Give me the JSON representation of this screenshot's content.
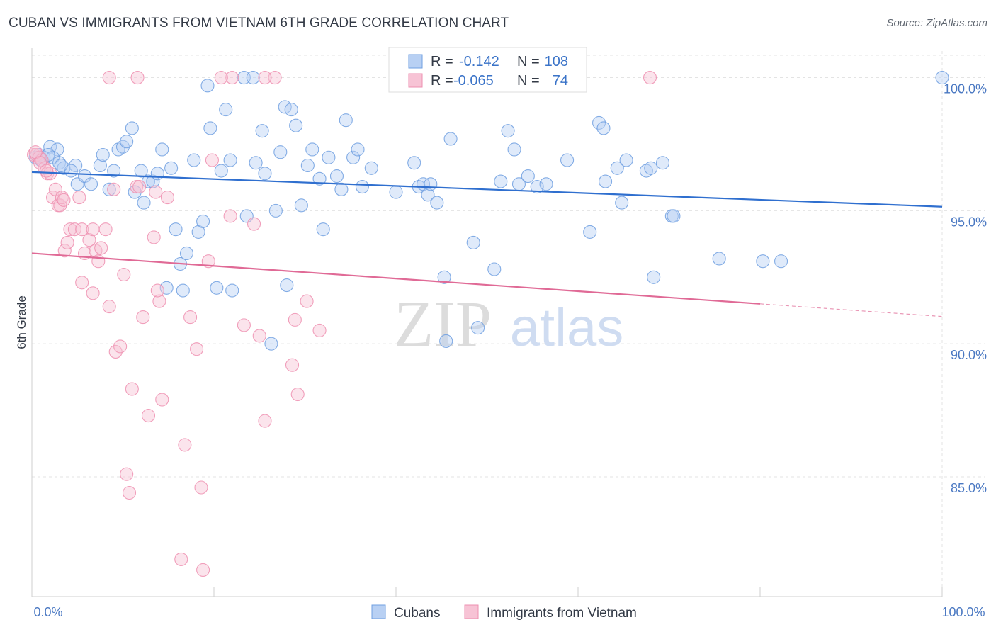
{
  "title": "CUBAN VS IMMIGRANTS FROM VIETNAM 6TH GRADE CORRELATION CHART",
  "source": "Source: ZipAtlas.com",
  "watermark": {
    "zip": "ZIP",
    "atlas": "atlas"
  },
  "legend_top": [
    {
      "r_label": "R =",
      "r_value": "-0.142",
      "n_label": "N =",
      "n_value": "108",
      "color": "#6f9fe0",
      "fill": "#b8d0f3"
    },
    {
      "r_label": "R =",
      "r_value": "-0.065",
      "n_label": "N =",
      "n_value": "74",
      "color": "#ee8fb0",
      "fill": "#f7c3d5"
    }
  ],
  "chart_data": {
    "type": "scatter",
    "title": "CUBAN VS IMMIGRANTS FROM VIETNAM 6TH GRADE CORRELATION CHART",
    "xlabel": "",
    "ylabel": "6th Grade",
    "xlim": [
      0,
      100
    ],
    "ylim": [
      80.5,
      101
    ],
    "x_tick_labels": [
      "0.0%",
      "100.0%"
    ],
    "y_ticks": [
      85,
      90,
      95,
      100
    ],
    "y_tick_labels": [
      "85.0%",
      "90.0%",
      "95.0%",
      "100.0%"
    ],
    "grid": true,
    "legend_position": "top-center",
    "series": [
      {
        "name": "Cubans",
        "color": "#6f9fe0",
        "fill": "#b8d0f3",
        "trend": {
          "x": [
            0,
            100
          ],
          "y": [
            96.45,
            95.15
          ]
        },
        "points": [
          [
            0.4,
            97.0
          ],
          [
            0.8,
            97.1
          ],
          [
            1.0,
            96.9
          ],
          [
            1.3,
            97.0
          ],
          [
            2.0,
            97.4
          ],
          [
            2.8,
            97.3
          ],
          [
            2.3,
            97.0
          ],
          [
            3.0,
            96.8
          ],
          [
            3.5,
            96.6
          ],
          [
            4.8,
            96.7
          ],
          [
            4.3,
            96.5
          ],
          [
            5.0,
            96.0
          ],
          [
            5.8,
            96.3
          ],
          [
            6.5,
            96.0
          ],
          [
            7.5,
            96.7
          ],
          [
            7.8,
            97.1
          ],
          [
            8.5,
            95.8
          ],
          [
            9.0,
            96.5
          ],
          [
            9.5,
            97.3
          ],
          [
            10.0,
            97.4
          ],
          [
            10.4,
            97.6
          ],
          [
            11.0,
            98.1
          ],
          [
            11.3,
            95.7
          ],
          [
            12.0,
            96.5
          ],
          [
            12.3,
            95.3
          ],
          [
            12.8,
            96.1
          ],
          [
            13.3,
            96.1
          ],
          [
            13.8,
            96.4
          ],
          [
            14.3,
            97.3
          ],
          [
            14.8,
            92.1
          ],
          [
            15.3,
            96.6
          ],
          [
            15.8,
            94.3
          ],
          [
            16.3,
            93.0
          ],
          [
            16.6,
            92.0
          ],
          [
            17.0,
            93.4
          ],
          [
            17.8,
            96.9
          ],
          [
            18.3,
            94.2
          ],
          [
            18.8,
            94.6
          ],
          [
            19.3,
            99.7
          ],
          [
            19.6,
            98.1
          ],
          [
            20.3,
            92.1
          ],
          [
            20.8,
            96.5
          ],
          [
            21.3,
            98.8
          ],
          [
            21.8,
            96.9
          ],
          [
            22.0,
            92.0
          ],
          [
            23.3,
            100.0
          ],
          [
            23.6,
            94.8
          ],
          [
            24.3,
            100.0
          ],
          [
            24.6,
            96.8
          ],
          [
            25.3,
            98.0
          ],
          [
            25.6,
            96.4
          ],
          [
            26.3,
            90.0
          ],
          [
            26.8,
            95.0
          ],
          [
            27.3,
            97.2
          ],
          [
            27.8,
            98.9
          ],
          [
            28.0,
            92.2
          ],
          [
            28.5,
            98.8
          ],
          [
            29.0,
            98.2
          ],
          [
            29.6,
            95.2
          ],
          [
            30.3,
            96.7
          ],
          [
            30.8,
            97.3
          ],
          [
            31.6,
            96.2
          ],
          [
            32.0,
            94.3
          ],
          [
            32.6,
            97.0
          ],
          [
            33.5,
            96.3
          ],
          [
            34.0,
            95.8
          ],
          [
            34.5,
            98.4
          ],
          [
            35.3,
            97.0
          ],
          [
            35.8,
            97.3
          ],
          [
            36.3,
            95.9
          ],
          [
            37.3,
            96.6
          ],
          [
            40.0,
            95.7
          ],
          [
            42.0,
            96.8
          ],
          [
            42.5,
            95.9
          ],
          [
            43.0,
            96.0
          ],
          [
            43.5,
            95.6
          ],
          [
            43.8,
            96.0
          ],
          [
            44.5,
            95.3
          ],
          [
            45.3,
            92.5
          ],
          [
            45.5,
            90.1
          ],
          [
            46.0,
            97.7
          ],
          [
            48.5,
            93.8
          ],
          [
            49.0,
            90.6
          ],
          [
            50.8,
            92.8
          ],
          [
            51.5,
            96.1
          ],
          [
            52.3,
            98.0
          ],
          [
            53.0,
            97.3
          ],
          [
            53.5,
            96.0
          ],
          [
            54.5,
            96.3
          ],
          [
            55.5,
            95.9
          ],
          [
            56.5,
            96.0
          ],
          [
            58.8,
            96.9
          ],
          [
            61.3,
            94.2
          ],
          [
            62.3,
            98.3
          ],
          [
            62.8,
            98.1
          ],
          [
            63.0,
            96.1
          ],
          [
            64.3,
            96.6
          ],
          [
            64.8,
            95.3
          ],
          [
            65.3,
            96.9
          ],
          [
            67.5,
            96.5
          ],
          [
            68.0,
            96.6
          ],
          [
            68.3,
            92.5
          ],
          [
            69.3,
            96.8
          ],
          [
            70.3,
            94.8
          ],
          [
            70.5,
            94.8
          ],
          [
            75.5,
            93.2
          ],
          [
            80.3,
            93.1
          ],
          [
            82.3,
            93.1
          ],
          [
            100.0,
            100.0
          ],
          [
            0.8,
            97.0
          ],
          [
            1.8,
            97.1
          ],
          [
            3.2,
            96.7
          ]
        ]
      },
      {
        "name": "Immigrants from Vietnam",
        "color": "#ee8fb0",
        "fill": "#f7c3d5",
        "trend": {
          "x": [
            0,
            80
          ],
          "y": [
            93.4,
            91.5
          ]
        },
        "points": [
          [
            0.2,
            97.1
          ],
          [
            0.5,
            97.1
          ],
          [
            0.8,
            97.0
          ],
          [
            1.1,
            96.9
          ],
          [
            1.4,
            96.6
          ],
          [
            1.7,
            96.4
          ],
          [
            2.0,
            96.4
          ],
          [
            2.3,
            95.5
          ],
          [
            2.6,
            95.8
          ],
          [
            2.9,
            95.2
          ],
          [
            3.1,
            95.2
          ],
          [
            3.3,
            95.5
          ],
          [
            3.6,
            93.5
          ],
          [
            3.9,
            93.8
          ],
          [
            4.2,
            94.3
          ],
          [
            4.7,
            94.3
          ],
          [
            5.2,
            95.5
          ],
          [
            5.5,
            94.3
          ],
          [
            5.8,
            93.4
          ],
          [
            6.3,
            93.9
          ],
          [
            6.7,
            94.3
          ],
          [
            7.0,
            93.5
          ],
          [
            7.3,
            93.1
          ],
          [
            7.6,
            93.6
          ],
          [
            8.1,
            94.3
          ],
          [
            8.5,
            91.4
          ],
          [
            9.0,
            95.8
          ],
          [
            9.2,
            89.7
          ],
          [
            9.7,
            89.9
          ],
          [
            10.1,
            92.6
          ],
          [
            10.4,
            85.1
          ],
          [
            10.7,
            84.4
          ],
          [
            11.0,
            88.3
          ],
          [
            11.5,
            95.9
          ],
          [
            11.8,
            95.9
          ],
          [
            12.2,
            91.0
          ],
          [
            12.8,
            87.3
          ],
          [
            13.4,
            94.0
          ],
          [
            13.6,
            95.7
          ],
          [
            14.0,
            91.6
          ],
          [
            14.3,
            87.9
          ],
          [
            14.9,
            95.5
          ],
          [
            16.4,
            81.9
          ],
          [
            16.8,
            86.2
          ],
          [
            17.4,
            91.0
          ],
          [
            18.1,
            89.8
          ],
          [
            18.6,
            84.6
          ],
          [
            18.8,
            81.5
          ],
          [
            19.4,
            93.1
          ],
          [
            19.8,
            96.9
          ],
          [
            22.0,
            100.0
          ],
          [
            23.3,
            90.7
          ],
          [
            24.4,
            94.5
          ],
          [
            25.0,
            90.3
          ],
          [
            25.6,
            87.1
          ],
          [
            26.7,
            100.0
          ],
          [
            28.6,
            89.2
          ],
          [
            28.9,
            90.9
          ],
          [
            29.2,
            88.1
          ],
          [
            30.2,
            91.6
          ],
          [
            31.6,
            90.5
          ],
          [
            8.5,
            100.0
          ],
          [
            11.6,
            100.0
          ],
          [
            20.8,
            100.0
          ],
          [
            25.6,
            100.0
          ],
          [
            67.9,
            100.0
          ],
          [
            5.5,
            92.3
          ],
          [
            6.7,
            91.9
          ],
          [
            13.8,
            92.0
          ],
          [
            21.8,
            94.8
          ],
          [
            0.4,
            97.2
          ],
          [
            0.9,
            96.8
          ],
          [
            1.6,
            96.5
          ],
          [
            3.5,
            95.4
          ]
        ]
      }
    ]
  }
}
